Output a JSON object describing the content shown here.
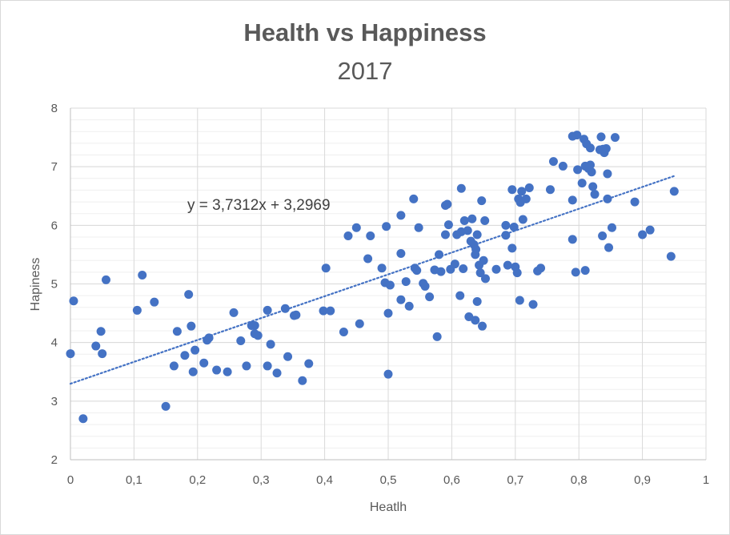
{
  "chart_data": {
    "type": "scatter",
    "title": "Health vs Happiness",
    "subtitle": "2017",
    "xlabel": "Heatlh",
    "ylabel": "Hapiness",
    "xlim": [
      0,
      1
    ],
    "ylim": [
      2,
      8
    ],
    "x_ticks": [
      "0",
      "0,1",
      "0,2",
      "0,3",
      "0,4",
      "0,5",
      "0,6",
      "0,7",
      "0,8",
      "0,9",
      "1"
    ],
    "y_ticks": [
      "2",
      "3",
      "4",
      "5",
      "6",
      "7",
      "8"
    ],
    "x_tick_values": [
      0,
      0.1,
      0.2,
      0.3,
      0.4,
      0.5,
      0.6,
      0.7,
      0.8,
      0.9,
      1
    ],
    "y_tick_values": [
      2,
      3,
      4,
      5,
      6,
      7,
      8
    ],
    "minor_gridlines": true,
    "marker_color": "#4472c4",
    "trendline": {
      "equation": "y = 3,7312x + 3,2969",
      "slope": 3.7312,
      "intercept": 3.2969,
      "x_range": [
        0,
        0.95
      ],
      "color": "#4472c4",
      "style": "dotted"
    },
    "points": [
      [
        0.0,
        3.81
      ],
      [
        0.005,
        4.71
      ],
      [
        0.02,
        2.7
      ],
      [
        0.04,
        3.94
      ],
      [
        0.048,
        4.19
      ],
      [
        0.05,
        3.81
      ],
      [
        0.056,
        5.07
      ],
      [
        0.105,
        4.55
      ],
      [
        0.113,
        5.15
      ],
      [
        0.132,
        4.69
      ],
      [
        0.15,
        2.91
      ],
      [
        0.163,
        3.6
      ],
      [
        0.168,
        4.19
      ],
      [
        0.18,
        3.78
      ],
      [
        0.186,
        4.82
      ],
      [
        0.19,
        4.28
      ],
      [
        0.193,
        3.5
      ],
      [
        0.196,
        3.87
      ],
      [
        0.21,
        3.65
      ],
      [
        0.215,
        4.04
      ],
      [
        0.218,
        4.08
      ],
      [
        0.23,
        3.53
      ],
      [
        0.247,
        3.5
      ],
      [
        0.257,
        4.51
      ],
      [
        0.268,
        4.03
      ],
      [
        0.277,
        3.6
      ],
      [
        0.285,
        4.29
      ],
      [
        0.29,
        4.29
      ],
      [
        0.29,
        4.15
      ],
      [
        0.295,
        4.12
      ],
      [
        0.31,
        4.55
      ],
      [
        0.31,
        3.6
      ],
      [
        0.315,
        3.97
      ],
      [
        0.325,
        3.48
      ],
      [
        0.338,
        4.58
      ],
      [
        0.342,
        3.76
      ],
      [
        0.352,
        4.46
      ],
      [
        0.355,
        4.47
      ],
      [
        0.365,
        3.35
      ],
      [
        0.375,
        3.64
      ],
      [
        0.398,
        4.54
      ],
      [
        0.402,
        5.27
      ],
      [
        0.409,
        4.54
      ],
      [
        0.43,
        4.18
      ],
      [
        0.437,
        5.82
      ],
      [
        0.45,
        5.96
      ],
      [
        0.455,
        4.32
      ],
      [
        0.468,
        5.43
      ],
      [
        0.472,
        5.82
      ],
      [
        0.49,
        5.27
      ],
      [
        0.495,
        5.02
      ],
      [
        0.497,
        5.98
      ],
      [
        0.5,
        4.5
      ],
      [
        0.5,
        3.46
      ],
      [
        0.503,
        4.98
      ],
      [
        0.52,
        4.73
      ],
      [
        0.52,
        6.17
      ],
      [
        0.52,
        5.52
      ],
      [
        0.528,
        5.04
      ],
      [
        0.533,
        4.62
      ],
      [
        0.54,
        6.45
      ],
      [
        0.542,
        5.27
      ],
      [
        0.545,
        5.23
      ],
      [
        0.548,
        5.96
      ],
      [
        0.555,
        5.01
      ],
      [
        0.558,
        4.96
      ],
      [
        0.565,
        4.78
      ],
      [
        0.573,
        5.24
      ],
      [
        0.577,
        4.1
      ],
      [
        0.58,
        5.5
      ],
      [
        0.583,
        5.21
      ],
      [
        0.59,
        6.34
      ],
      [
        0.59,
        5.84
      ],
      [
        0.593,
        6.36
      ],
      [
        0.595,
        6.01
      ],
      [
        0.598,
        5.25
      ],
      [
        0.605,
        5.34
      ],
      [
        0.608,
        5.84
      ],
      [
        0.613,
        4.8
      ],
      [
        0.615,
        5.89
      ],
      [
        0.615,
        6.63
      ],
      [
        0.618,
        5.26
      ],
      [
        0.62,
        6.08
      ],
      [
        0.625,
        5.91
      ],
      [
        0.627,
        4.44
      ],
      [
        0.63,
        5.73
      ],
      [
        0.632,
        6.11
      ],
      [
        0.635,
        5.67
      ],
      [
        0.637,
        5.5
      ],
      [
        0.637,
        4.38
      ],
      [
        0.638,
        5.59
      ],
      [
        0.64,
        4.7
      ],
      [
        0.64,
        5.84
      ],
      [
        0.643,
        5.32
      ],
      [
        0.645,
        5.19
      ],
      [
        0.647,
        6.42
      ],
      [
        0.648,
        4.28
      ],
      [
        0.65,
        5.4
      ],
      [
        0.652,
        6.08
      ],
      [
        0.653,
        5.09
      ],
      [
        0.67,
        5.25
      ],
      [
        0.685,
        6.0
      ],
      [
        0.685,
        5.83
      ],
      [
        0.688,
        5.32
      ],
      [
        0.695,
        5.61
      ],
      [
        0.695,
        6.61
      ],
      [
        0.698,
        5.97
      ],
      [
        0.7,
        5.29
      ],
      [
        0.703,
        5.19
      ],
      [
        0.705,
        6.45
      ],
      [
        0.707,
        4.72
      ],
      [
        0.708,
        6.39
      ],
      [
        0.71,
        6.58
      ],
      [
        0.712,
        6.1
      ],
      [
        0.717,
        6.45
      ],
      [
        0.722,
        6.64
      ],
      [
        0.728,
        4.65
      ],
      [
        0.735,
        5.22
      ],
      [
        0.74,
        5.27
      ],
      [
        0.755,
        6.61
      ],
      [
        0.76,
        7.09
      ],
      [
        0.775,
        7.01
      ],
      [
        0.79,
        7.52
      ],
      [
        0.79,
        6.43
      ],
      [
        0.79,
        5.76
      ],
      [
        0.795,
        5.2
      ],
      [
        0.797,
        7.54
      ],
      [
        0.798,
        6.95
      ],
      [
        0.805,
        6.72
      ],
      [
        0.808,
        7.47
      ],
      [
        0.81,
        5.23
      ],
      [
        0.81,
        7.01
      ],
      [
        0.812,
        7.39
      ],
      [
        0.815,
        6.97
      ],
      [
        0.818,
        7.03
      ],
      [
        0.818,
        7.32
      ],
      [
        0.82,
        6.91
      ],
      [
        0.822,
        6.66
      ],
      [
        0.825,
        6.53
      ],
      [
        0.833,
        7.29
      ],
      [
        0.835,
        7.51
      ],
      [
        0.837,
        5.82
      ],
      [
        0.838,
        7.3
      ],
      [
        0.84,
        7.24
      ],
      [
        0.843,
        7.31
      ],
      [
        0.845,
        6.88
      ],
      [
        0.845,
        6.45
      ],
      [
        0.847,
        5.62
      ],
      [
        0.852,
        5.96
      ],
      [
        0.857,
        7.5
      ],
      [
        0.888,
        6.4
      ],
      [
        0.9,
        5.84
      ],
      [
        0.912,
        5.92
      ],
      [
        0.945,
        5.47
      ],
      [
        0.95,
        6.58
      ]
    ]
  }
}
